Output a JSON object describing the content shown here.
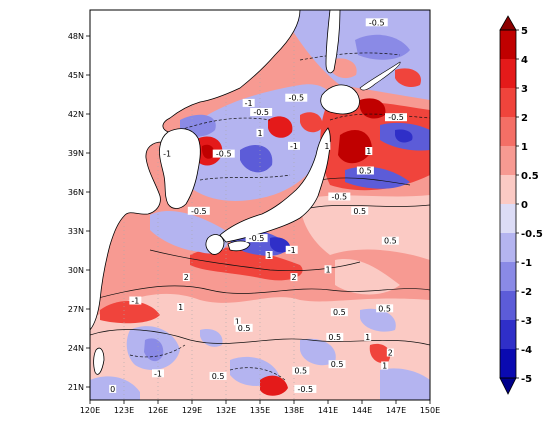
{
  "map": {
    "lon_ticks": [
      "120E",
      "123E",
      "126E",
      "129E",
      "132E",
      "135E",
      "138E",
      "141E",
      "144E",
      "147E",
      "150E"
    ],
    "lat_ticks": [
      "21N",
      "24N",
      "27N",
      "30N",
      "33N",
      "36N",
      "39N",
      "42N",
      "45N",
      "48N"
    ],
    "lon_range": [
      120,
      150
    ],
    "lat_range": [
      20,
      50
    ]
  },
  "colorbar": {
    "levels": [
      "5",
      "4",
      "3",
      "2",
      "1",
      "0.5",
      "0",
      "-0.5",
      "-1",
      "-2",
      "-3",
      "-4",
      "-5"
    ],
    "colors": [
      "#c00000",
      "#e41a1a",
      "#f0443c",
      "#f46f66",
      "#f79a92",
      "#fbcac4",
      "#dcdcf6",
      "#b4b4f0",
      "#8a8ae6",
      "#5c5cd8",
      "#2f2fc8",
      "#0a0ab0"
    ]
  },
  "contour_labels": [
    {
      "text": "-0.5",
      "lon": 145.3,
      "lat": 48.9
    },
    {
      "text": "-0.5",
      "lon": 138.2,
      "lat": 43.1
    },
    {
      "text": "-1",
      "lon": 134.0,
      "lat": 42.7
    },
    {
      "text": "-0.5",
      "lon": 135.1,
      "lat": 42.0
    },
    {
      "text": "1",
      "lon": 135.0,
      "lat": 40.4
    },
    {
      "text": "-0.5",
      "lon": 147.0,
      "lat": 41.6
    },
    {
      "text": "-1",
      "lon": 126.8,
      "lat": 38.8
    },
    {
      "text": "-0.5",
      "lon": 131.8,
      "lat": 38.8
    },
    {
      "text": "1",
      "lon": 140.9,
      "lat": 39.4
    },
    {
      "text": "-1",
      "lon": 138.0,
      "lat": 39.4
    },
    {
      "text": "1",
      "lon": 144.6,
      "lat": 39.0
    },
    {
      "text": "0.5",
      "lon": 144.3,
      "lat": 37.5
    },
    {
      "text": "-0.5",
      "lon": 129.6,
      "lat": 34.4
    },
    {
      "text": "-0.5",
      "lon": 142.0,
      "lat": 35.5
    },
    {
      "text": "0.5",
      "lon": 143.8,
      "lat": 34.4
    },
    {
      "text": "-0.5",
      "lon": 134.7,
      "lat": 32.3
    },
    {
      "text": "0.5",
      "lon": 146.5,
      "lat": 32.1
    },
    {
      "text": "-1",
      "lon": 137.8,
      "lat": 31.4
    },
    {
      "text": "1",
      "lon": 135.8,
      "lat": 31.0
    },
    {
      "text": "2",
      "lon": 128.5,
      "lat": 29.3
    },
    {
      "text": "2",
      "lon": 138.0,
      "lat": 29.3
    },
    {
      "text": "1",
      "lon": 141.0,
      "lat": 29.9
    },
    {
      "text": "-1",
      "lon": 124.0,
      "lat": 27.5
    },
    {
      "text": "1",
      "lon": 128.0,
      "lat": 27.0
    },
    {
      "text": "0.5",
      "lon": 142.0,
      "lat": 26.6
    },
    {
      "text": "0.5",
      "lon": 146.0,
      "lat": 26.9
    },
    {
      "text": "1",
      "lon": 133.0,
      "lat": 25.9
    },
    {
      "text": "0.5",
      "lon": 133.6,
      "lat": 25.4
    },
    {
      "text": "0.5",
      "lon": 141.6,
      "lat": 24.7
    },
    {
      "text": "1",
      "lon": 144.5,
      "lat": 24.7
    },
    {
      "text": "2",
      "lon": 146.5,
      "lat": 23.5
    },
    {
      "text": "1",
      "lon": 146.0,
      "lat": 22.5
    },
    {
      "text": "-1",
      "lon": 126.0,
      "lat": 21.9
    },
    {
      "text": "0.5",
      "lon": 138.6,
      "lat": 22.1
    },
    {
      "text": "0.5",
      "lon": 141.8,
      "lat": 22.6
    },
    {
      "text": "-0.5",
      "lon": 139.0,
      "lat": 20.7
    },
    {
      "text": "0",
      "lon": 122.0,
      "lat": 20.7
    },
    {
      "text": "0.5",
      "lon": 131.3,
      "lat": 21.7
    }
  ]
}
